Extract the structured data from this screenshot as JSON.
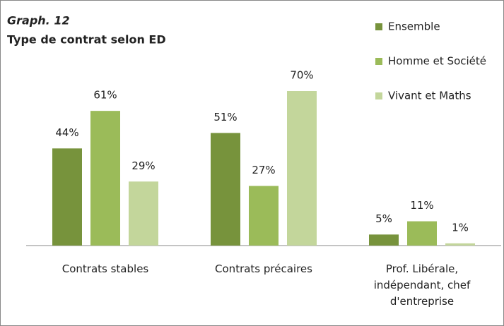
{
  "chart_data": {
    "type": "bar",
    "figure_label": "Graph. 12",
    "title": "Type de contrat selon ED",
    "categories": [
      "Contrats stables",
      "Contrats précaires",
      "Prof. Libérale, indépendant, chef d'entreprise"
    ],
    "series": [
      {
        "name": "Ensemble",
        "color": "#77933c",
        "values": [
          44,
          51,
          5
        ],
        "value_labels": [
          "44%",
          "51%",
          "5%"
        ]
      },
      {
        "name": "Homme et Société",
        "color": "#9bbb59",
        "values": [
          61,
          27,
          11
        ],
        "value_labels": [
          "61%",
          "27%",
          "11%"
        ]
      },
      {
        "name": "Vivant et Maths",
        "color": "#c3d69b",
        "values": [
          29,
          70,
          1
        ],
        "value_labels": [
          "29%",
          "70%",
          "1%"
        ]
      }
    ],
    "legend": "top-right"
  }
}
